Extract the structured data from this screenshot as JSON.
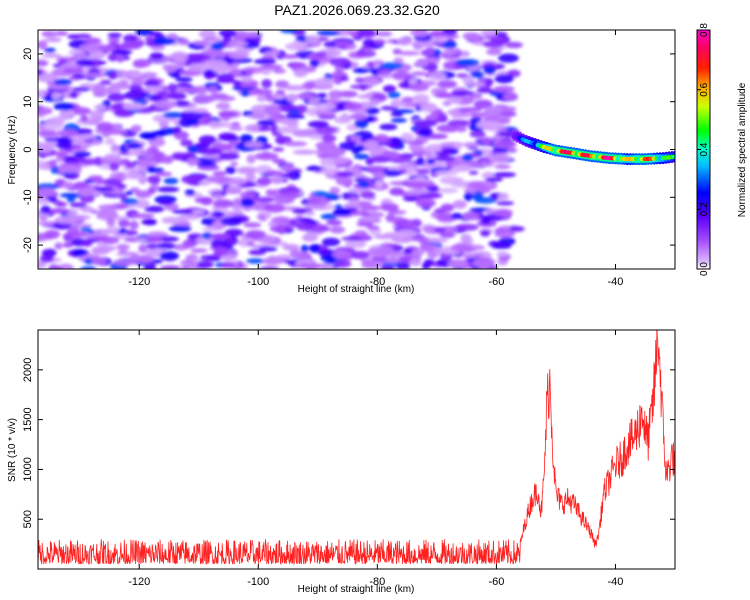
{
  "figure_title": "PAZ1.2026.069.23.32.G20",
  "chart_data": [
    {
      "type": "heatmap",
      "title": "PAZ1.2026.069.23.32.G20",
      "xlabel": "Height of straight line (km)",
      "ylabel": "Frequency (Hz)",
      "xlim": [
        -137,
        -30
      ],
      "ylim": [
        -25,
        25
      ],
      "xticks": [
        -120,
        -100,
        -80,
        -60,
        -40
      ],
      "yticks": [
        -20,
        -10,
        0,
        10,
        20
      ],
      "noise_region": {
        "x_range": [
          -137,
          -57
        ],
        "freq_range": [
          -25,
          25
        ],
        "amplitude_range": [
          0.05,
          0.3
        ]
      },
      "signal_track": {
        "x": [
          -57,
          -55,
          -52,
          -50,
          -47,
          -44,
          -41,
          -38,
          -35,
          -32,
          -30
        ],
        "freq": [
          3.0,
          1.8,
          0.5,
          -0.2,
          -0.8,
          -1.4,
          -1.8,
          -2.0,
          -2.0,
          -1.8,
          -1.5
        ],
        "amplitude": [
          0.25,
          0.35,
          0.55,
          0.72,
          0.78,
          0.7,
          0.8,
          0.6,
          0.72,
          0.55,
          0.45
        ]
      },
      "colorbar": {
        "label": "Normalized spectral amplitude",
        "range": [
          0.0,
          0.8
        ],
        "ticks": [
          "0.0",
          "0.2",
          "0.4",
          "0.6",
          "0.8"
        ],
        "colormap": [
          "#ffffff",
          "#cc88ff",
          "#7a00ff",
          "#0000ff",
          "#00ddee",
          "#00ff00",
          "#ffff00",
          "#ff8800",
          "#ff0000",
          "#ff00aa"
        ]
      }
    },
    {
      "type": "line",
      "xlabel": "Height of straight line (km)",
      "ylabel": "SNR (10 * v/v)",
      "xlim": [
        -137,
        -30
      ],
      "ylim": [
        0,
        2400
      ],
      "xticks": [
        -120,
        -100,
        -80,
        -60,
        -40
      ],
      "yticks": [
        500,
        1000,
        1500,
        2000
      ],
      "series": [
        {
          "name": "SNR",
          "color": "#ff2020",
          "noise_floor": {
            "x_range": [
              -137,
              -56
            ],
            "min": 50,
            "max": 300
          },
          "x": [
            -56,
            -55,
            -54,
            -53,
            -52.5,
            -52,
            -51.5,
            -51,
            -50.5,
            -50,
            -49,
            -48,
            -47,
            -46,
            -45,
            -44,
            -43.5,
            -43,
            -42.5,
            -42,
            -41,
            -40,
            -39,
            -38,
            -37,
            -36,
            -35.5,
            -35,
            -34.5,
            -34,
            -33.5,
            -33,
            -32.8,
            -32.5,
            -32,
            -31.5,
            -31,
            -30.5,
            -30
          ],
          "y": [
            250,
            500,
            700,
            800,
            550,
            900,
            1700,
            1880,
            1200,
            750,
            650,
            700,
            650,
            550,
            450,
            350,
            250,
            300,
            500,
            750,
            900,
            1050,
            1100,
            1250,
            1300,
            1450,
            1600,
            1350,
            1300,
            1500,
            1800,
            2250,
            2380,
            2000,
            1400,
            950,
            1000,
            1150,
            1050
          ]
        }
      ]
    }
  ]
}
